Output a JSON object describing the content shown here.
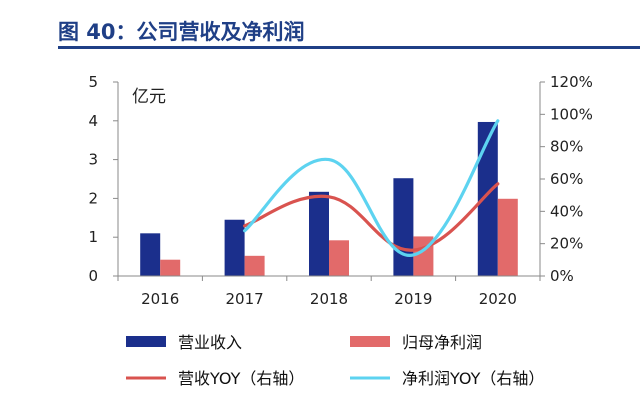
{
  "title": "图 40：公司营收及净利润",
  "chart_data": {
    "type": "bar",
    "categories": [
      "2016",
      "2017",
      "2018",
      "2019",
      "2020"
    ],
    "unit_label": "亿元",
    "left_axis": {
      "min": 0,
      "max": 5,
      "ticks": [
        "0",
        "1",
        "2",
        "3",
        "4",
        "5"
      ]
    },
    "right_axis": {
      "min": 0,
      "max": 120,
      "ticks": [
        "0%",
        "20%",
        "40%",
        "60%",
        "80%",
        "100%",
        "120%"
      ]
    },
    "bar_series": [
      {
        "name": "营业收入",
        "color": "#1b2f8c",
        "values": [
          1.1,
          1.45,
          2.17,
          2.52,
          3.97
        ]
      },
      {
        "name": "归母净利润",
        "color": "#e26a6a",
        "values": [
          0.42,
          0.52,
          0.92,
          1.02,
          1.99
        ]
      }
    ],
    "line_series": [
      {
        "name": "营收YOY（右轴）",
        "color": "#d9534f",
        "values": [
          null,
          31,
          49,
          16,
          57
        ]
      },
      {
        "name": "净利润YOY（右轴）",
        "color": "#5dd3f0",
        "values": [
          null,
          28,
          72,
          13,
          96
        ]
      }
    ],
    "grid": false,
    "legend": "bottom"
  }
}
